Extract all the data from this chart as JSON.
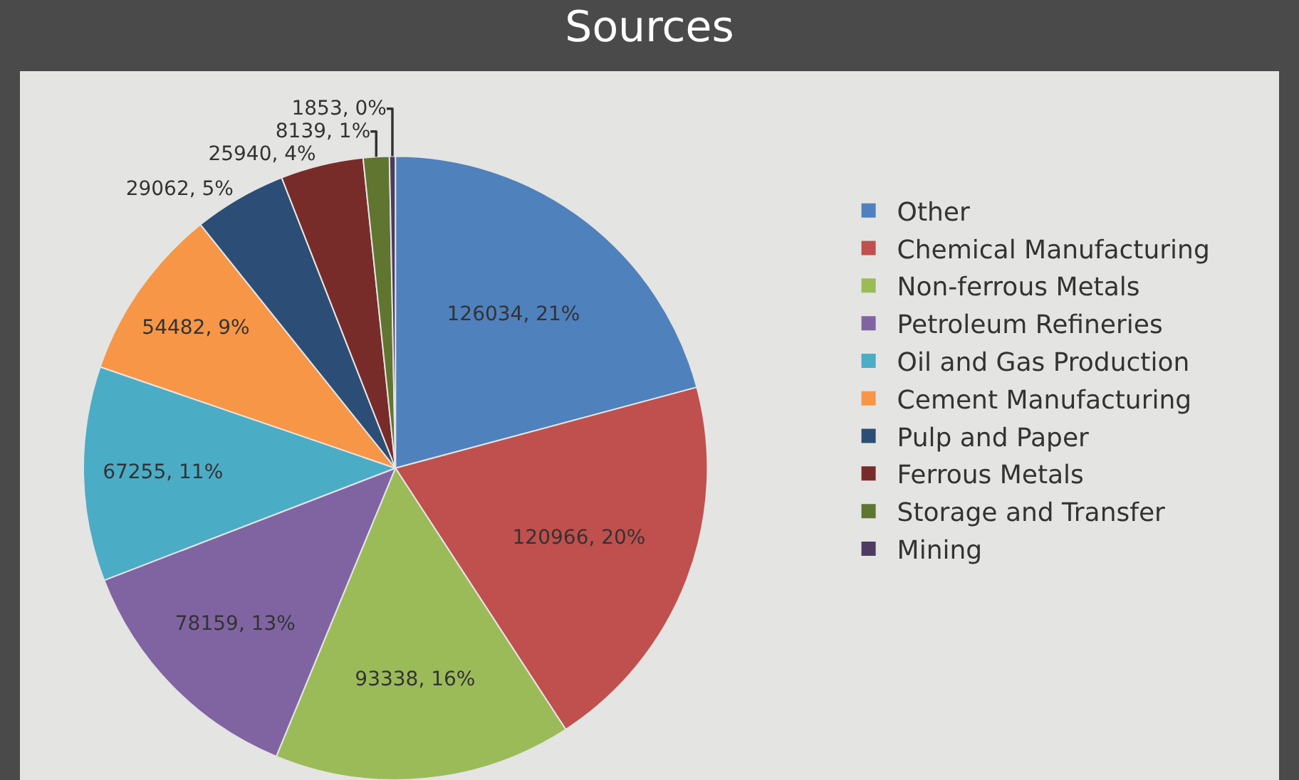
{
  "chart_data": {
    "type": "pie",
    "title": "Sources",
    "categories": [
      "Other",
      "Chemical Manufacturing",
      "Non-ferrous Metals",
      "Petroleum Refineries",
      "Oil and Gas Production",
      "Cement Manufacturing",
      "Pulp and Paper",
      "Ferrous Metals",
      "Storage and Transfer",
      "Mining"
    ],
    "values": [
      126034,
      120966,
      93338,
      78159,
      67255,
      54482,
      29062,
      25940,
      8139,
      1853
    ],
    "value_labels": [
      "126034, 21%",
      "120966, 20%",
      "93338, 16%",
      "78159, 13%",
      "67255, 11%",
      "54482, 9%",
      "29062, 5%",
      "25940, 4%",
      "8139, 1%",
      "1853, 0%"
    ],
    "colors": [
      "#4f81bd",
      "#c0504d",
      "#9bbb59",
      "#8064a2",
      "#4bacc6",
      "#f79646",
      "#2c4d75",
      "#772c2a",
      "#5f7530",
      "#4d3b62"
    ],
    "legend": "right"
  }
}
